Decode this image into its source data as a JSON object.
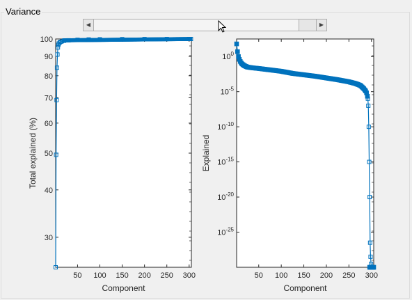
{
  "panel": {
    "title": "Variance"
  },
  "slider": {
    "left_arrow": "◀",
    "right_arrow": "▶",
    "position": 0.0
  },
  "chart_data": [
    {
      "type": "line",
      "title": "",
      "xlabel": "Component",
      "ylabel": "Total explained (%)",
      "xlim": [
        1,
        305
      ],
      "ylim": [
        25,
        100
      ],
      "yscale": "log",
      "xticks": [
        50,
        100,
        150,
        200,
        250,
        300
      ],
      "yticks": [
        30,
        40,
        50,
        60,
        70,
        80,
        90,
        100
      ],
      "series_color": "#0072bd",
      "marker": "square",
      "grid": false,
      "series": [
        {
          "x": [
            1,
            2,
            3,
            4,
            5,
            6,
            7,
            8,
            10,
            12,
            15,
            20,
            30,
            50,
            75,
            100,
            150,
            200,
            250,
            300,
            302,
            304
          ],
          "values": [
            25,
            49.5,
            69,
            84,
            91,
            95,
            96.5,
            97.3,
            97.9,
            98.3,
            98.6,
            98.9,
            99.2,
            99.5,
            99.7,
            99.8,
            99.9,
            99.95,
            99.98,
            100,
            100,
            100
          ]
        }
      ]
    },
    {
      "type": "line",
      "title": "",
      "xlabel": "Component",
      "ylabel": "Explained",
      "xlim": [
        1,
        305
      ],
      "ylim_exponents": [
        -30,
        2.5
      ],
      "yscale": "log",
      "xticks": [
        50,
        100,
        150,
        200,
        250,
        300
      ],
      "ytick_exponents": [
        0,
        -5,
        -10,
        -15,
        -20,
        -25
      ],
      "series_color": "#0072bd",
      "marker": "square",
      "grid": false,
      "series": [
        {
          "x": [
            1,
            2,
            3,
            5,
            8,
            12,
            18,
            25,
            35,
            50,
            75,
            100,
            125,
            150,
            175,
            200,
            225,
            250,
            265,
            275,
            282,
            287,
            290,
            292,
            293,
            294,
            295,
            296,
            297,
            298,
            299,
            300,
            302,
            305
          ],
          "log10_values": [
            1.8,
            1.3,
            0.7,
            0.0,
            -0.6,
            -1.0,
            -1.3,
            -1.5,
            -1.6,
            -1.7,
            -1.9,
            -2.1,
            -2.4,
            -2.6,
            -2.8,
            -3.05,
            -3.3,
            -3.6,
            -3.85,
            -4.1,
            -4.5,
            -4.9,
            -5.3,
            -6.0,
            -7.0,
            -10.0,
            -15.0,
            -20.0,
            -26.5,
            -28.5,
            -29.5,
            -30.0,
            -30.0,
            -30.0
          ]
        }
      ]
    }
  ]
}
